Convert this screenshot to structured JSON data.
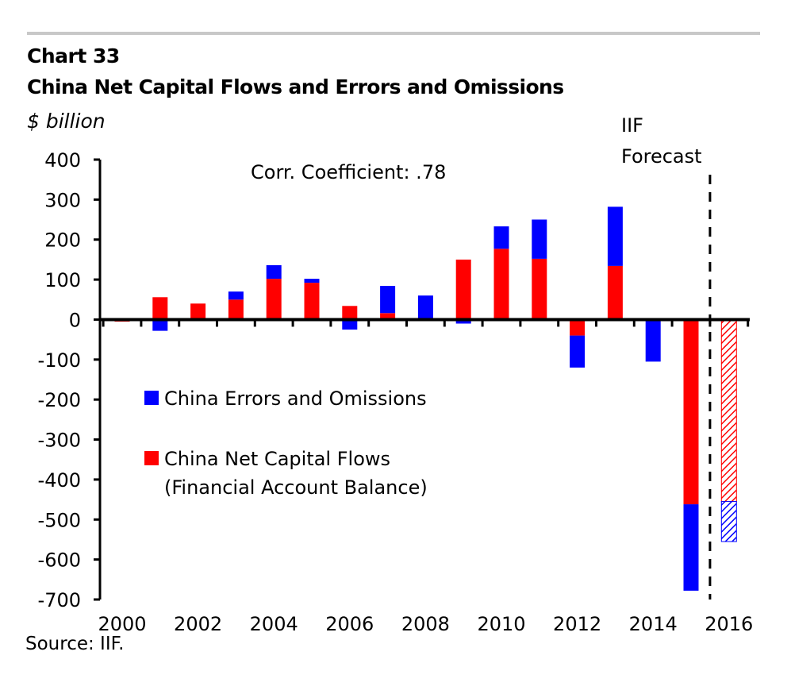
{
  "header": {
    "chart_number": "Chart 33",
    "title": "China Net Capital Flows and Errors and Omissions",
    "unit": "$ billion"
  },
  "footer": {
    "source": "Source: IIF."
  },
  "colors": {
    "errors_omissions": "#0000ff",
    "net_capital_flows": "#ff0000",
    "divider": "#c8c8c8"
  },
  "chart_data": {
    "type": "bar",
    "stacked": true,
    "title": "China Net Capital Flows and Errors and Omissions",
    "ylabel": "$ billion",
    "xlabel": "",
    "ylim": [
      -700,
      400
    ],
    "yticks": [
      400,
      300,
      200,
      100,
      0,
      -100,
      -200,
      -300,
      -400,
      -500,
      -600,
      -700
    ],
    "ytick_labels": [
      "400",
      "300",
      "200",
      "100",
      "0",
      "-100",
      "-200",
      "-300",
      "-400",
      "-500",
      "-600",
      "-700"
    ],
    "categories": [
      "2000",
      "2001",
      "2002",
      "2003",
      "2004",
      "2005",
      "2006",
      "2007",
      "2008",
      "2009",
      "2010",
      "2011",
      "2012",
      "2013",
      "2014",
      "2015",
      "2016"
    ],
    "xtick_labels": [
      "2000",
      "2002",
      "2004",
      "2006",
      "2008",
      "2010",
      "2012",
      "2014",
      "2016"
    ],
    "series": [
      {
        "name": "China Net Capital Flows (Financial Account Balance)",
        "color": "#ff0000",
        "values": [
          -5,
          56,
          40,
          50,
          102,
          92,
          34,
          16,
          2,
          150,
          177,
          152,
          -40,
          134,
          0,
          -462,
          -455
        ]
      },
      {
        "name": "China Errors and Omissions",
        "color": "#0000ff",
        "values": [
          0,
          -28,
          0,
          20,
          34,
          10,
          -25,
          68,
          58,
          -10,
          56,
          98,
          -80,
          148,
          -105,
          -216,
          -100
        ]
      }
    ],
    "forecast_categories": [
      "2016"
    ],
    "legend": {
      "placement": "center-left",
      "entries": [
        {
          "label": "China Errors and Omissions",
          "color": "#0000ff"
        },
        {
          "label_line1": "China Net Capital Flows",
          "label_line2": "(Financial Account Balance)",
          "color": "#ff0000"
        }
      ]
    },
    "annotations": {
      "correlation": "Corr. Coefficient: .78",
      "forecast_line1": "IIF",
      "forecast_line2": "Forecast"
    },
    "grid": false
  }
}
